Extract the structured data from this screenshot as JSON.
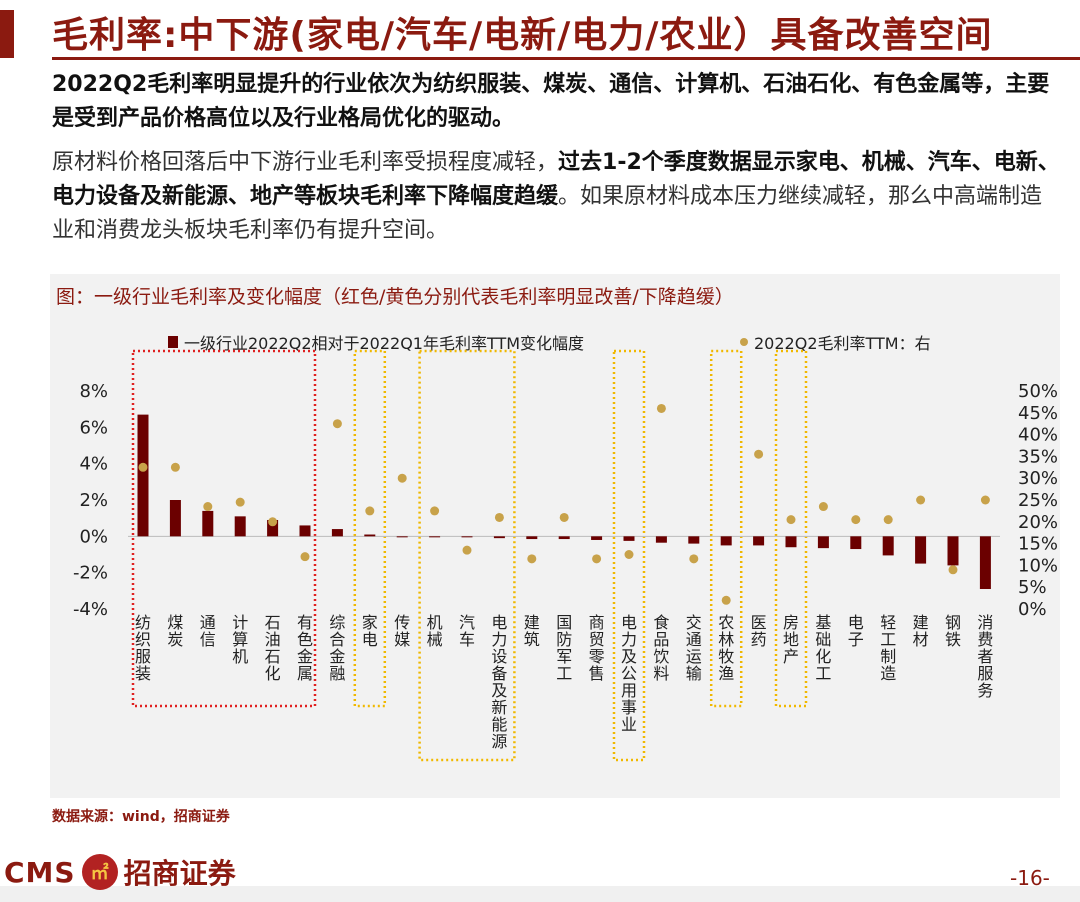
{
  "slide": {
    "title": "毛利率:中下游(家电/汽车/电新/电力/农业）具备改善空间",
    "para1": "2022Q2毛利率明显提升的行业依次为纺织服装、煤炭、通信、计算机、石油石化、有色金属等，主要是受到产品价格高位以及行业格局优化的驱动。",
    "para2_pre": "原材料价格回落后中下游行业毛利率受损程度减轻，",
    "para2_bold": "过去1-2个季度数据显示家电、机械、汽车、电新、电力设备及新能源、地产等板块毛利率下降幅度趋缓",
    "para2_post": "。如果原材料成本压力继续减轻，那么中高端制造业和消费龙头板块毛利率仍有提升空间。",
    "source": "数据来源：wind，招商证券",
    "page": "-16-",
    "logo": {
      "latin": "CMS",
      "chinese": "招商证券",
      "emblem_icon": "cms-emblem-icon"
    }
  },
  "colors": {
    "accent": "#8b1a10",
    "bar": "#6b0000",
    "dot": "#c8a24a",
    "red_box": "#e02020",
    "yellow_box": "#f0b800"
  },
  "chart_data": {
    "type": "bar",
    "title": "图：一级行业毛利率及变化幅度（红色/黄色分别代表毛利率明显改善/下降趋缓）",
    "legend": [
      "一级行业2022Q2相对于2022Q1年毛利率TTM变化幅度",
      "2022Q2毛利率TTM：右"
    ],
    "categories": [
      "纺织服装",
      "煤炭",
      "通信",
      "计算机",
      "石油石化",
      "有色金属",
      "综合金融",
      "家电",
      "传媒",
      "机械",
      "汽车",
      "电力设备及新能源",
      "建筑",
      "国防军工",
      "商贸零售",
      "电力及公用事业",
      "食品饮料",
      "交通运输",
      "农林牧渔",
      "医药",
      "房地产",
      "基础化工",
      "电子",
      "轻工制造",
      "建材",
      "钢铁",
      "消费者服务"
    ],
    "series": [
      {
        "name": "一级行业2022Q2相对于2022Q1年毛利率TTM变化幅度",
        "axis": "left",
        "kind": "bar",
        "values": [
          6.7,
          2.0,
          1.4,
          1.1,
          0.9,
          0.6,
          0.4,
          0.1,
          0.0,
          -0.05,
          -0.05,
          -0.1,
          -0.15,
          -0.15,
          -0.2,
          -0.25,
          -0.35,
          -0.4,
          -0.5,
          -0.5,
          -0.6,
          -0.65,
          -0.7,
          -1.05,
          -1.5,
          -1.6,
          -2.9
        ]
      },
      {
        "name": "2022Q2毛利率TTM：右",
        "axis": "right",
        "kind": "scatter",
        "values": [
          32.5,
          32.5,
          23.5,
          24.5,
          20,
          12,
          42.5,
          22.5,
          30,
          22.5,
          13.5,
          21,
          11.5,
          21,
          11.5,
          12.5,
          46,
          11.5,
          2,
          35.5,
          20.5,
          23.5,
          20.5,
          20.5,
          25,
          9,
          25
        ]
      }
    ],
    "ylim_left": [
      -4,
      8
    ],
    "yticks_left": [
      "8%",
      "6%",
      "4%",
      "2%",
      "0%",
      "-2%",
      "-4%"
    ],
    "ylim_right": [
      0,
      50
    ],
    "yticks_right": [
      "50%",
      "45%",
      "40%",
      "35%",
      "30%",
      "25%",
      "20%",
      "15%",
      "10%",
      "5%",
      "0%"
    ],
    "highlight_red": [
      0,
      5
    ],
    "highlight_yellow": [
      [
        7,
        7
      ],
      [
        9,
        11
      ],
      [
        15,
        15
      ],
      [
        18,
        18
      ],
      [
        20,
        20
      ]
    ],
    "grid": false,
    "legend_position": "top"
  }
}
